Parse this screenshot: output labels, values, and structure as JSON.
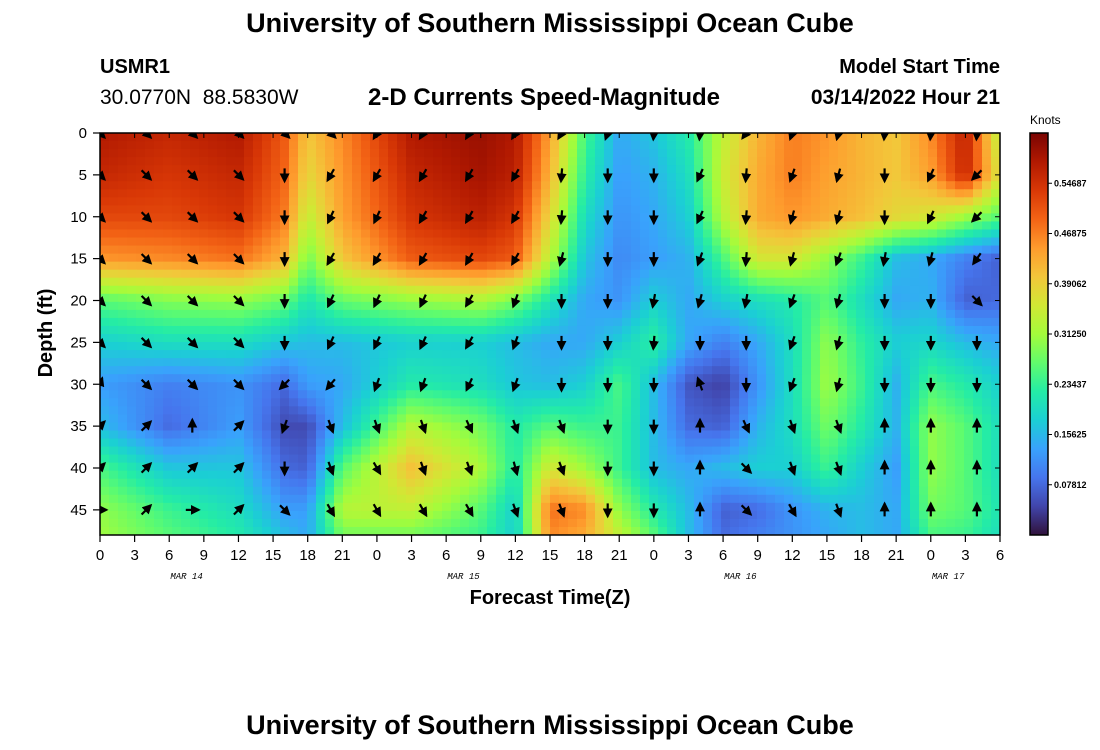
{
  "header": {
    "title": "University of Southern Mississippi Ocean Cube",
    "station_id": "USMR1",
    "station_coords": "30.0770N  88.5830W",
    "plot_title": "2-D Currents Speed-Magnitude",
    "model_start_label": "Model Start Time",
    "model_start_value": "03/14/2022 Hour 21"
  },
  "footer": {
    "title": "University of Southern Mississippi Ocean Cube"
  },
  "chart_data": {
    "type": "heatmap",
    "title": "2-D Currents Speed-Magnitude",
    "xlabel": "Forecast Time(Z)",
    "ylabel": "Depth (ft)",
    "x_ticks": [
      "0",
      "3",
      "6",
      "9",
      "12",
      "15",
      "18",
      "21",
      "0",
      "3",
      "6",
      "9",
      "12",
      "15",
      "18",
      "21",
      "0",
      "3",
      "6",
      "9",
      "12",
      "15",
      "18",
      "21",
      "0",
      "3",
      "6"
    ],
    "date_labels": [
      {
        "label": "MAR 14",
        "tick_index": 2.5
      },
      {
        "label": "MAR 15",
        "tick_index": 10.5
      },
      {
        "label": "MAR 16",
        "tick_index": 18.5
      },
      {
        "label": "MAR 17",
        "tick_index": 24.5
      }
    ],
    "x_range_hours": [
      0,
      78
    ],
    "y_range_ft": [
      0,
      48
    ],
    "y_ticks": [
      0,
      5,
      10,
      15,
      20,
      25,
      30,
      35,
      40,
      45
    ],
    "colorbar": {
      "label": "Knots",
      "range": [
        0.0,
        0.625
      ],
      "ticks": [
        "0.54687",
        "0.46875",
        "0.39062",
        "0.31250",
        "0.23437",
        "0.15625",
        "0.07812"
      ],
      "tick_values": [
        0.546875,
        0.46875,
        0.390625,
        0.3125,
        0.234375,
        0.15625,
        0.078125
      ],
      "colors": [
        "#30123b",
        "#4145ab",
        "#4675ed",
        "#39a2fc",
        "#1bcfd4",
        "#24eca6",
        "#61fc6c",
        "#a4fc3b",
        "#d1e834",
        "#f3c63a",
        "#fe9b2d",
        "#f36315",
        "#d93806",
        "#b11901",
        "#7a0402"
      ]
    },
    "fields": {
      "speed_rows_depth_ft": [
        0,
        5,
        10,
        15,
        20,
        25,
        30,
        35,
        40,
        45,
        48
      ],
      "speed_cols_hours": [
        0,
        6,
        12,
        16,
        18,
        21,
        27,
        33,
        36,
        39,
        42,
        45,
        48,
        51,
        54,
        57,
        60,
        63,
        66,
        69,
        72,
        75,
        78
      ],
      "speed_knots": [
        [
          0.58,
          0.56,
          0.58,
          0.5,
          0.4,
          0.46,
          0.58,
          0.6,
          0.58,
          0.44,
          0.25,
          0.14,
          0.17,
          0.22,
          0.34,
          0.42,
          0.47,
          0.45,
          0.42,
          0.4,
          0.46,
          0.57,
          0.33
        ],
        [
          0.56,
          0.54,
          0.56,
          0.49,
          0.38,
          0.45,
          0.56,
          0.59,
          0.57,
          0.42,
          0.23,
          0.13,
          0.15,
          0.2,
          0.35,
          0.43,
          0.47,
          0.44,
          0.42,
          0.4,
          0.44,
          0.56,
          0.36
        ],
        [
          0.52,
          0.52,
          0.54,
          0.47,
          0.34,
          0.44,
          0.54,
          0.57,
          0.54,
          0.38,
          0.2,
          0.12,
          0.14,
          0.18,
          0.33,
          0.43,
          0.45,
          0.43,
          0.41,
          0.38,
          0.36,
          0.31,
          0.26
        ],
        [
          0.45,
          0.46,
          0.48,
          0.42,
          0.28,
          0.4,
          0.5,
          0.52,
          0.5,
          0.33,
          0.17,
          0.11,
          0.13,
          0.15,
          0.25,
          0.36,
          0.36,
          0.3,
          0.24,
          0.16,
          0.14,
          0.1,
          0.07
        ],
        [
          0.26,
          0.29,
          0.3,
          0.27,
          0.21,
          0.27,
          0.3,
          0.32,
          0.28,
          0.21,
          0.14,
          0.12,
          0.18,
          0.14,
          0.18,
          0.2,
          0.22,
          0.26,
          0.2,
          0.14,
          0.15,
          0.07,
          0.08
        ],
        [
          0.18,
          0.2,
          0.2,
          0.17,
          0.16,
          0.16,
          0.18,
          0.18,
          0.16,
          0.14,
          0.14,
          0.18,
          0.23,
          0.14,
          0.1,
          0.14,
          0.2,
          0.3,
          0.23,
          0.18,
          0.19,
          0.16,
          0.14
        ],
        [
          0.13,
          0.1,
          0.12,
          0.08,
          0.13,
          0.14,
          0.22,
          0.2,
          0.17,
          0.16,
          0.18,
          0.25,
          0.16,
          0.06,
          0.04,
          0.12,
          0.2,
          0.31,
          0.24,
          0.15,
          0.25,
          0.22,
          0.18
        ],
        [
          0.16,
          0.08,
          0.13,
          0.05,
          0.05,
          0.16,
          0.33,
          0.28,
          0.22,
          0.26,
          0.24,
          0.24,
          0.16,
          0.08,
          0.07,
          0.15,
          0.2,
          0.28,
          0.22,
          0.15,
          0.3,
          0.26,
          0.2
        ],
        [
          0.25,
          0.17,
          0.17,
          0.08,
          0.07,
          0.26,
          0.41,
          0.32,
          0.22,
          0.36,
          0.31,
          0.24,
          0.16,
          0.14,
          0.16,
          0.18,
          0.18,
          0.24,
          0.18,
          0.13,
          0.3,
          0.26,
          0.2
        ],
        [
          0.3,
          0.24,
          0.2,
          0.13,
          0.13,
          0.33,
          0.34,
          0.26,
          0.18,
          0.48,
          0.46,
          0.3,
          0.22,
          0.16,
          0.07,
          0.08,
          0.12,
          0.15,
          0.16,
          0.14,
          0.28,
          0.26,
          0.21
        ],
        [
          0.31,
          0.26,
          0.22,
          0.16,
          0.14,
          0.28,
          0.28,
          0.24,
          0.18,
          0.46,
          0.43,
          0.34,
          0.26,
          0.16,
          0.08,
          0.1,
          0.12,
          0.14,
          0.16,
          0.14,
          0.25,
          0.24,
          0.2
        ]
      ],
      "vector_cols_hours": [
        0,
        4,
        8,
        12,
        16,
        20,
        24,
        28,
        32,
        36,
        40,
        44,
        48,
        52,
        56,
        60,
        64,
        68,
        72,
        76
      ],
      "vector_rows_depth_ft": [
        0,
        5,
        10,
        15,
        20,
        25,
        30,
        35,
        40,
        45
      ],
      "vector_direction_deg": [
        [
          135,
          135,
          135,
          135,
          135,
          135,
          210,
          210,
          210,
          210,
          210,
          200,
          185,
          185,
          215,
          200,
          195,
          185,
          185,
          185
        ],
        [
          135,
          135,
          135,
          135,
          180,
          210,
          210,
          210,
          210,
          210,
          185,
          180,
          180,
          205,
          185,
          200,
          195,
          180,
          205,
          225
        ],
        [
          135,
          135,
          135,
          135,
          180,
          205,
          205,
          210,
          210,
          210,
          185,
          180,
          180,
          205,
          185,
          195,
          195,
          180,
          205,
          225
        ],
        [
          135,
          135,
          135,
          135,
          180,
          210,
          210,
          210,
          210,
          210,
          195,
          180,
          180,
          200,
          185,
          195,
          200,
          190,
          195,
          215
        ],
        [
          135,
          135,
          135,
          135,
          180,
          205,
          205,
          205,
          210,
          200,
          180,
          180,
          190,
          195,
          190,
          200,
          195,
          180,
          180,
          135
        ],
        [
          135,
          135,
          135,
          135,
          180,
          205,
          205,
          205,
          210,
          200,
          180,
          180,
          185,
          180,
          180,
          200,
          195,
          180,
          180,
          180
        ],
        [
          20,
          135,
          135,
          135,
          225,
          220,
          200,
          200,
          205,
          200,
          180,
          180,
          180,
          340,
          180,
          200,
          195,
          180,
          180,
          180
        ],
        [
          45,
          45,
          0,
          45,
          200,
          160,
          160,
          160,
          155,
          160,
          160,
          180,
          180,
          360,
          155,
          160,
          160,
          0,
          0,
          0
        ],
        [
          45,
          45,
          45,
          45,
          180,
          160,
          150,
          160,
          160,
          165,
          160,
          180,
          180,
          360,
          135,
          160,
          160,
          0,
          0,
          0
        ],
        [
          90,
          45,
          90,
          45,
          135,
          150,
          150,
          150,
          150,
          160,
          160,
          180,
          180,
          0,
          135,
          150,
          160,
          0,
          0,
          0
        ]
      ]
    }
  }
}
